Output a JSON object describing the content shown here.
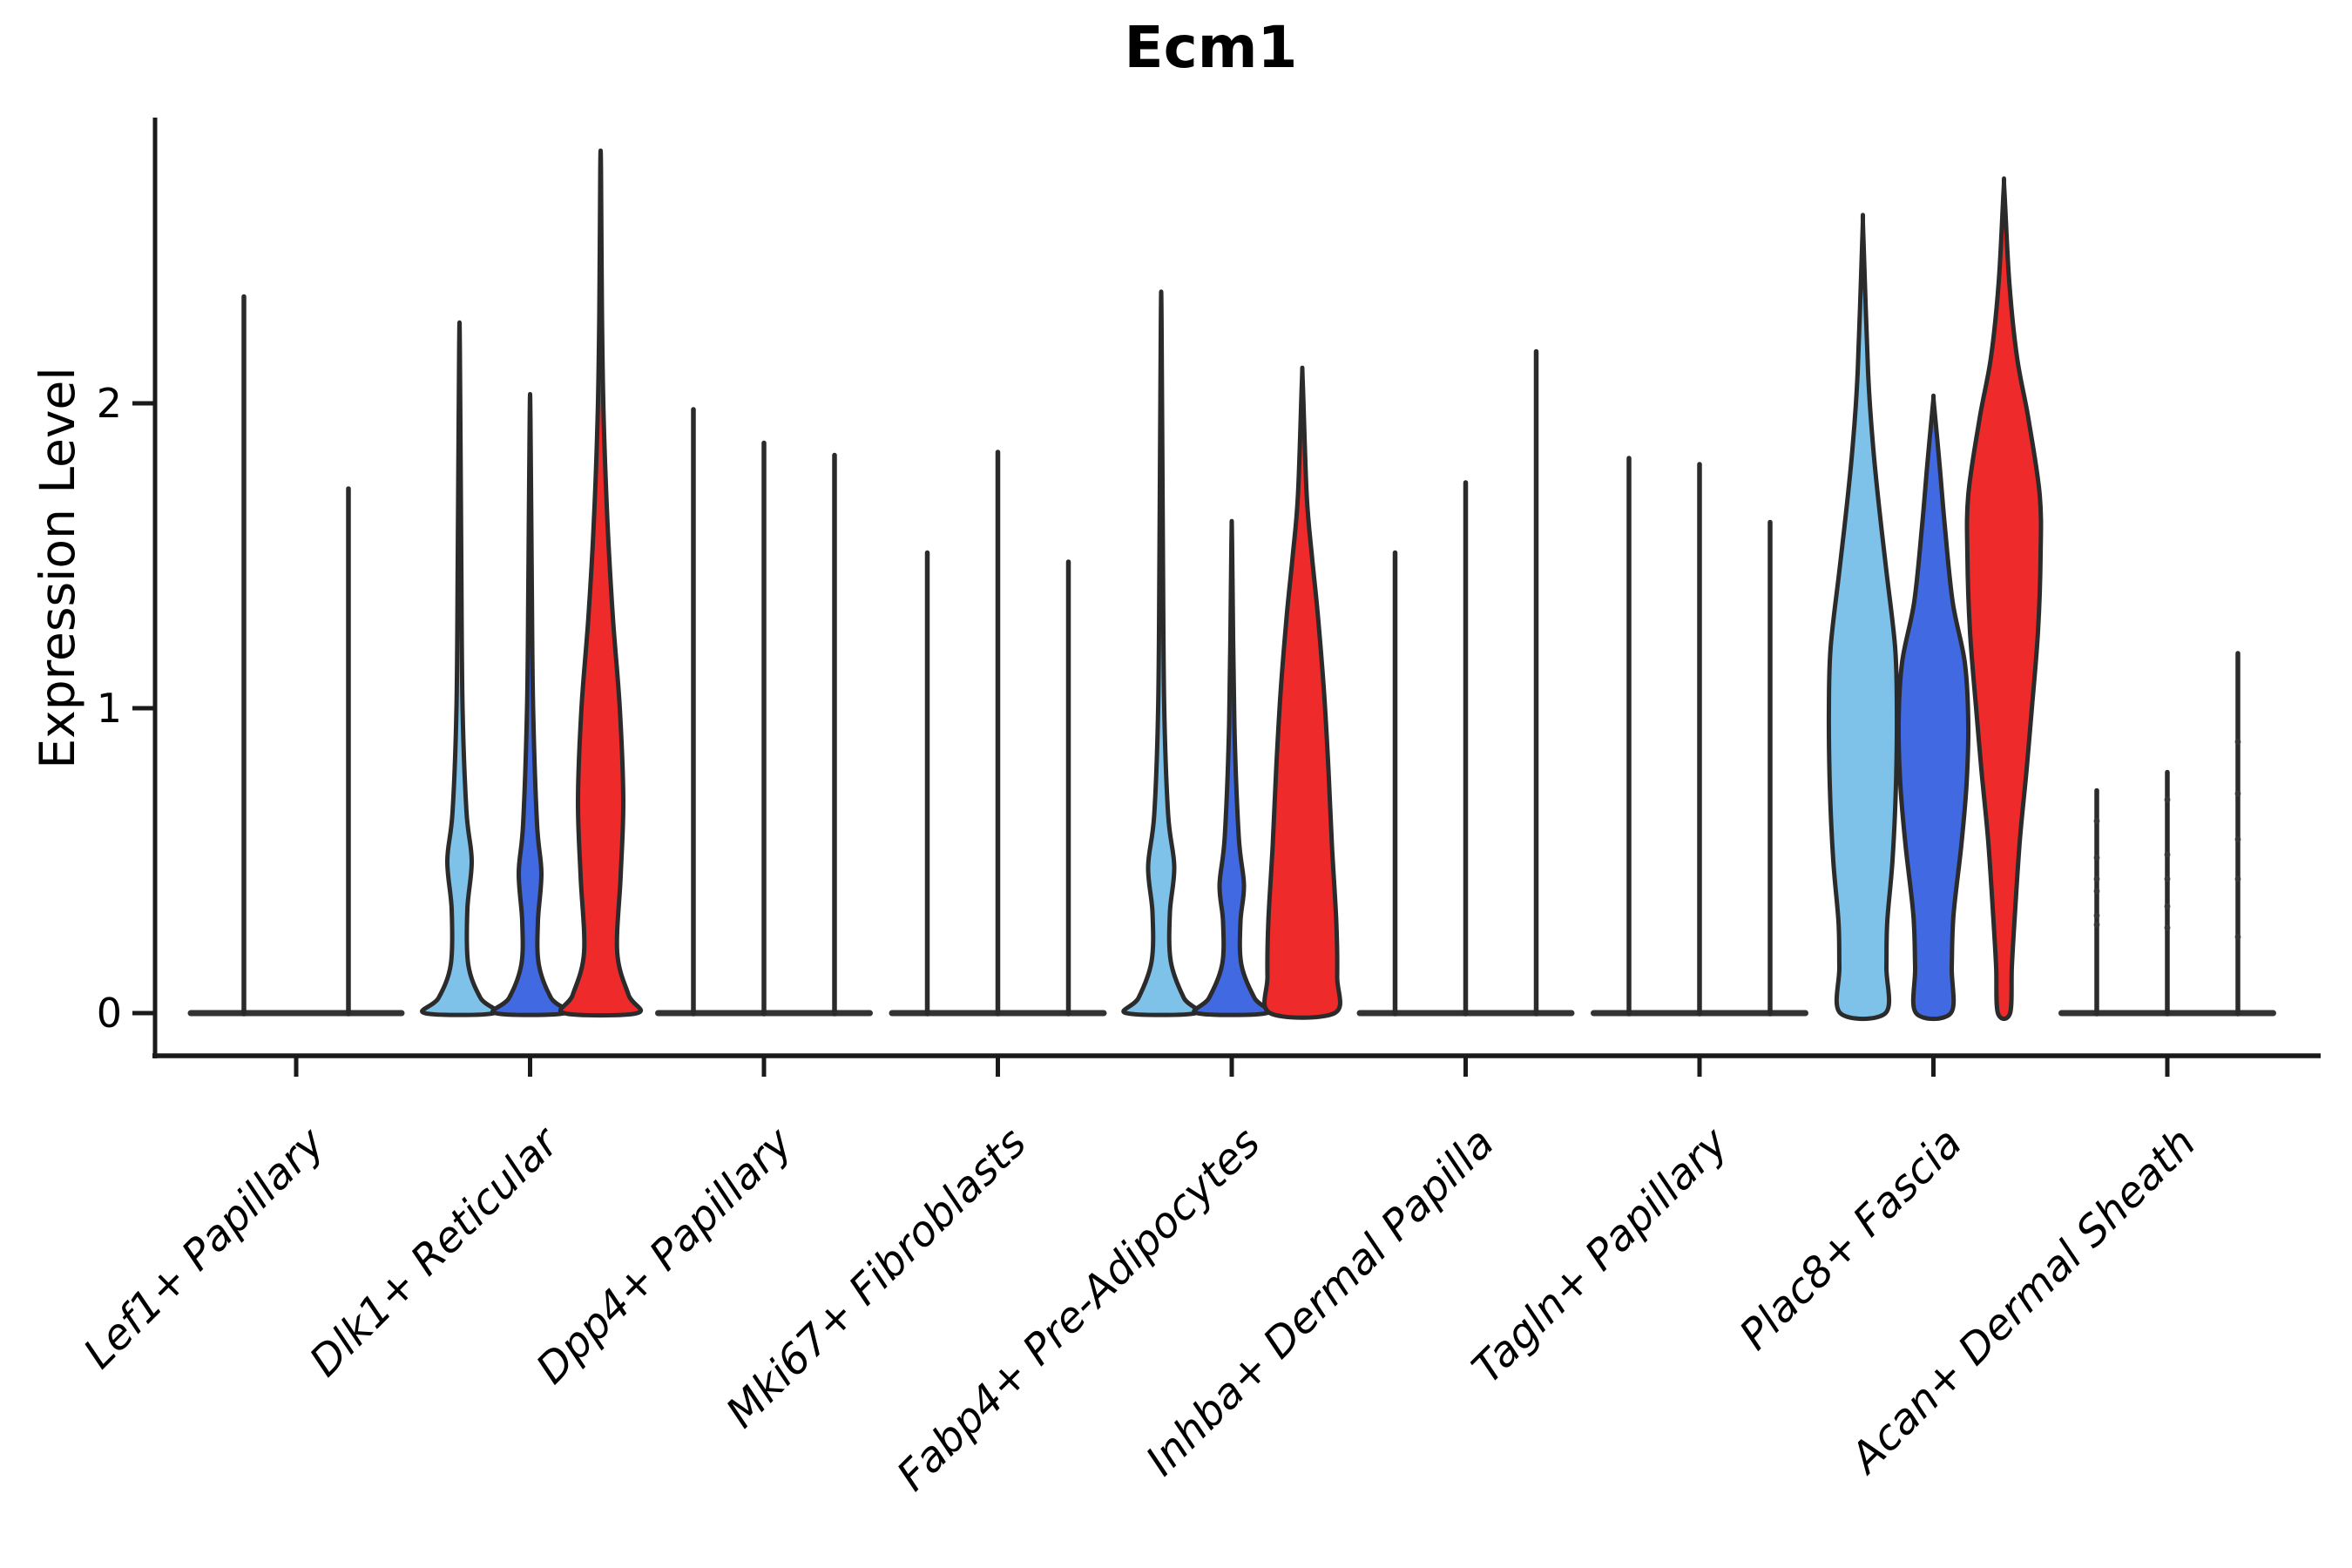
{
  "chart_data": {
    "type": "violin",
    "title": "Ecm1",
    "ylabel": "Expression Level",
    "xlabel": "",
    "yticks": [
      0,
      1,
      2
    ],
    "ylim": [
      -0.14,
      2.94
    ],
    "grid": false,
    "legend_position": "none",
    "background": "#ffffff",
    "axis_color": "#1a1a1a",
    "outline_color": "#2b2b2b",
    "palette": {
      "lightblue": "#7EC2E9",
      "blue": "#4169E1",
      "red": "#EF2A2A"
    },
    "categories": [
      "Lef1+ Papillary",
      "Dlk1+ Reticular",
      "Dpp4+ Papillary",
      "Mki67+ Fibroblasts",
      "Fabp4+ Pre-Adipocytes",
      "Inhba+ Dermal Papilla",
      "Tagln+ Papillary",
      "Plac8+ Fascia",
      "Acan+ Dermal Sheath"
    ],
    "groups": [
      {
        "category": "Lef1+ Papillary",
        "violins": [
          {
            "color": "lightblue",
            "max": 2.35,
            "offset": -60,
            "shape": "spike",
            "base_half": 61
          },
          {
            "color": "red",
            "max": 1.72,
            "offset": 60,
            "shape": "spike",
            "base_half": 61
          }
        ]
      },
      {
        "category": "Dlk1+ Reticular",
        "violins": [
          {
            "color": "lightblue",
            "max": 2.18,
            "offset": -81,
            "shape": "violin",
            "profile": [
              [
                0,
                40
              ],
              [
                0.05,
                24
              ],
              [
                0.16,
                10
              ],
              [
                0.34,
                9
              ],
              [
                0.5,
                14
              ],
              [
                0.66,
                8
              ],
              [
                1.0,
                3.5
              ],
              [
                1.5,
                2
              ],
              [
                2.18,
                0.4
              ]
            ]
          },
          {
            "color": "blue",
            "max": 1.96,
            "offset": 0,
            "shape": "violin",
            "profile": [
              [
                0,
                40
              ],
              [
                0.05,
                24
              ],
              [
                0.16,
                10
              ],
              [
                0.3,
                9
              ],
              [
                0.46,
                13
              ],
              [
                0.62,
                8
              ],
              [
                1.0,
                3.5
              ],
              [
                1.4,
                2
              ],
              [
                1.96,
                0.4
              ]
            ]
          },
          {
            "color": "red",
            "max": 2.77,
            "offset": 81,
            "shape": "violin",
            "profile": [
              [
                0,
                42
              ],
              [
                0.06,
                32
              ],
              [
                0.2,
                19
              ],
              [
                0.45,
                23
              ],
              [
                0.7,
                26
              ],
              [
                1.0,
                22
              ],
              [
                1.3,
                14
              ],
              [
                1.6,
                8
              ],
              [
                1.95,
                3.5
              ],
              [
                2.3,
                1.5
              ],
              [
                2.77,
                0.4
              ]
            ]
          }
        ]
      },
      {
        "category": "Dpp4+ Papillary",
        "violins": [
          {
            "color": "lightblue",
            "max": 1.98,
            "offset": -81,
            "shape": "spike"
          },
          {
            "color": "blue",
            "max": 1.87,
            "offset": 0,
            "shape": "spike"
          },
          {
            "color": "red",
            "max": 1.83,
            "offset": 81,
            "shape": "spike"
          }
        ]
      },
      {
        "category": "Mki67+ Fibroblasts",
        "violins": [
          {
            "color": "lightblue",
            "max": 1.51,
            "offset": -81,
            "shape": "spike"
          },
          {
            "color": "blue",
            "max": 1.84,
            "offset": 0,
            "shape": "spike"
          },
          {
            "color": "red",
            "max": 1.48,
            "offset": 81,
            "shape": "spike"
          }
        ]
      },
      {
        "category": "Fabp4+ Pre-Adipocytes",
        "violins": [
          {
            "color": "lightblue",
            "max": 2.27,
            "offset": -81,
            "shape": "violin",
            "profile": [
              [
                0,
                40
              ],
              [
                0.05,
                26
              ],
              [
                0.17,
                11
              ],
              [
                0.33,
                10
              ],
              [
                0.48,
                15
              ],
              [
                0.65,
                8
              ],
              [
                1.0,
                3.5
              ],
              [
                1.5,
                2
              ],
              [
                2.27,
                0.4
              ]
            ]
          },
          {
            "color": "blue",
            "max": 1.54,
            "offset": 0,
            "shape": "violin",
            "profile": [
              [
                0,
                40
              ],
              [
                0.05,
                26
              ],
              [
                0.16,
                11
              ],
              [
                0.3,
                10
              ],
              [
                0.42,
                14
              ],
              [
                0.58,
                8
              ],
              [
                0.95,
                3
              ],
              [
                1.54,
                0.4
              ]
            ]
          },
          {
            "color": "red",
            "max": 2.07,
            "offset": 81,
            "shape": "violin",
            "profile": [
              [
                0,
                37
              ],
              [
                0.12,
                40
              ],
              [
                0.3,
                39
              ],
              [
                0.55,
                34
              ],
              [
                0.8,
                30
              ],
              [
                1.05,
                25
              ],
              [
                1.3,
                18
              ],
              [
                1.5,
                11
              ],
              [
                1.7,
                5
              ],
              [
                2.07,
                0.5
              ]
            ]
          }
        ]
      },
      {
        "category": "Inhba+ Dermal Papilla",
        "violins": [
          {
            "color": "lightblue",
            "max": 1.51,
            "offset": -81,
            "shape": "spike"
          },
          {
            "color": "blue",
            "max": 1.74,
            "offset": 0,
            "shape": "spike"
          },
          {
            "color": "red",
            "max": 2.17,
            "offset": 81,
            "shape": "spike"
          }
        ]
      },
      {
        "category": "Tagln+ Papillary",
        "violins": [
          {
            "color": "lightblue",
            "max": 1.82,
            "offset": -81,
            "shape": "spike"
          },
          {
            "color": "blue",
            "max": 1.8,
            "offset": 0,
            "shape": "spike"
          },
          {
            "color": "red",
            "max": 1.61,
            "offset": 81,
            "shape": "spike"
          }
        ]
      },
      {
        "category": "Plac8+ Fascia",
        "violins": [
          {
            "color": "lightblue",
            "max": 2.56,
            "offset": -81,
            "shape": "violin",
            "profile": [
              [
                0,
                26
              ],
              [
                0.15,
                27
              ],
              [
                0.3,
                28
              ],
              [
                0.5,
                34
              ],
              [
                0.75,
                38
              ],
              [
                1.0,
                39
              ],
              [
                1.2,
                37
              ],
              [
                1.45,
                27
              ],
              [
                1.65,
                19
              ],
              [
                1.85,
                12
              ],
              [
                2.1,
                6
              ],
              [
                2.56,
                0.4
              ]
            ]
          },
          {
            "color": "blue",
            "max": 2.0,
            "offset": 0,
            "shape": "violin",
            "profile": [
              [
                0,
                20
              ],
              [
                0.15,
                21
              ],
              [
                0.32,
                23
              ],
              [
                0.55,
                32
              ],
              [
                0.75,
                38
              ],
              [
                0.95,
                40
              ],
              [
                1.15,
                36
              ],
              [
                1.35,
                22
              ],
              [
                1.6,
                13
              ],
              [
                1.8,
                7
              ],
              [
                2.0,
                0.5
              ]
            ]
          },
          {
            "color": "red",
            "max": 2.7,
            "offset": 81,
            "shape": "violin",
            "profile": [
              [
                0,
                7
              ],
              [
                0.15,
                9
              ],
              [
                0.3,
                12
              ],
              [
                0.56,
                18
              ],
              [
                0.8,
                26
              ],
              [
                1.0,
                32
              ],
              [
                1.25,
                39
              ],
              [
                1.5,
                42
              ],
              [
                1.7,
                41
              ],
              [
                1.95,
                28
              ],
              [
                2.15,
                15
              ],
              [
                2.4,
                6
              ],
              [
                2.7,
                0.4
              ]
            ]
          }
        ]
      },
      {
        "category": "Acan+ Dermal Sheath",
        "violins": [
          {
            "color": "lightblue",
            "max": 0.73,
            "offset": -81,
            "shape": "spike",
            "points": [
              0.63,
              0.51,
              0.44,
              0.4,
              0.32,
              0.29
            ]
          },
          {
            "color": "blue",
            "max": 0.79,
            "offset": 0,
            "shape": "spike",
            "points": [
              0.7,
              0.52,
              0.44,
              0.35,
              0.28
            ]
          },
          {
            "color": "red",
            "max": 1.18,
            "offset": 81,
            "shape": "spike",
            "points": [
              0.89,
              0.72,
              0.57,
              0.44,
              0.25
            ]
          }
        ]
      }
    ]
  }
}
